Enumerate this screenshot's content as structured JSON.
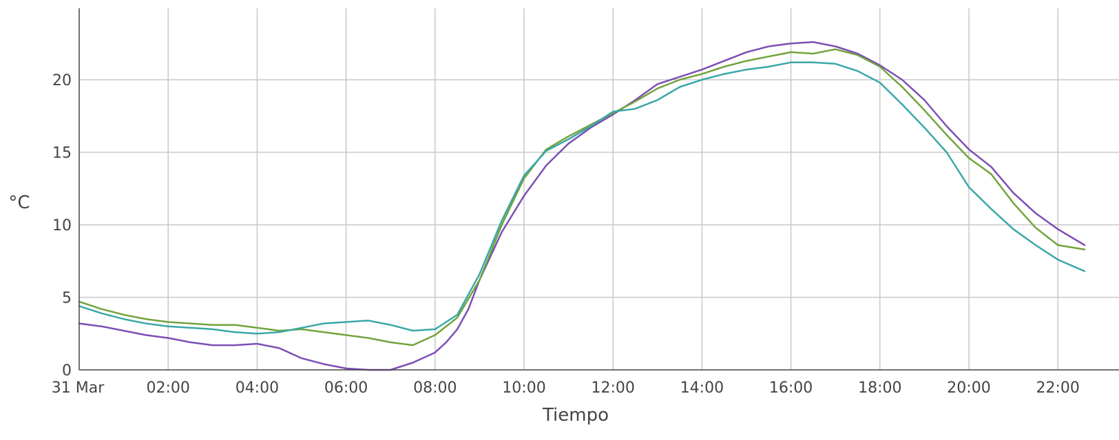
{
  "chart_data": {
    "type": "line",
    "title": "",
    "xlabel": "Tiempo",
    "ylabel": "°C",
    "x_unit": "hours",
    "xlim": [
      0,
      22.6
    ],
    "ylim": [
      0,
      25
    ],
    "grid": true,
    "x_ticks": [
      {
        "value": 0,
        "label": "31 Mar"
      },
      {
        "value": 2,
        "label": "02:00"
      },
      {
        "value": 4,
        "label": "04:00"
      },
      {
        "value": 6,
        "label": "06:00"
      },
      {
        "value": 8,
        "label": "08:00"
      },
      {
        "value": 10,
        "label": "10:00"
      },
      {
        "value": 12,
        "label": "12:00"
      },
      {
        "value": 14,
        "label": "14:00"
      },
      {
        "value": 16,
        "label": "16:00"
      },
      {
        "value": 18,
        "label": "18:00"
      },
      {
        "value": 20,
        "label": "20:00"
      },
      {
        "value": 22,
        "label": "22:00"
      }
    ],
    "y_ticks": [
      {
        "value": 0,
        "label": "0"
      },
      {
        "value": 5,
        "label": "5"
      },
      {
        "value": 10,
        "label": "10"
      },
      {
        "value": 15,
        "label": "15"
      },
      {
        "value": 20,
        "label": "20"
      }
    ],
    "series": [
      {
        "color": "#7b4fb3",
        "points": [
          [
            0,
            3.2
          ],
          [
            0.5,
            3.0
          ],
          [
            1,
            2.7
          ],
          [
            1.5,
            2.4
          ],
          [
            2,
            2.2
          ],
          [
            2.5,
            1.9
          ],
          [
            3,
            1.7
          ],
          [
            3.5,
            1.7
          ],
          [
            4,
            1.8
          ],
          [
            4.5,
            1.5
          ],
          [
            5,
            0.8
          ],
          [
            5.5,
            0.4
          ],
          [
            6,
            0.1
          ],
          [
            6.5,
            0.0
          ],
          [
            7,
            0.0
          ],
          [
            7.5,
            0.5
          ],
          [
            8,
            1.2
          ],
          [
            8.25,
            1.9
          ],
          [
            8.5,
            2.8
          ],
          [
            8.75,
            4.2
          ],
          [
            9,
            6.2
          ],
          [
            9.5,
            9.5
          ],
          [
            10,
            12.0
          ],
          [
            10.5,
            14.1
          ],
          [
            11,
            15.6
          ],
          [
            11.5,
            16.7
          ],
          [
            12,
            17.6
          ],
          [
            12.5,
            18.6
          ],
          [
            13,
            19.7
          ],
          [
            13.5,
            20.2
          ],
          [
            14,
            20.7
          ],
          [
            14.5,
            21.3
          ],
          [
            15,
            21.9
          ],
          [
            15.5,
            22.3
          ],
          [
            16,
            22.5
          ],
          [
            16.5,
            22.6
          ],
          [
            17,
            22.3
          ],
          [
            17.5,
            21.8
          ],
          [
            18,
            21.0
          ],
          [
            18.5,
            20.0
          ],
          [
            19,
            18.6
          ],
          [
            19.5,
            16.8
          ],
          [
            20,
            15.2
          ],
          [
            20.5,
            14.0
          ],
          [
            21,
            12.2
          ],
          [
            21.5,
            10.8
          ],
          [
            22,
            9.7
          ],
          [
            22.6,
            8.6
          ]
        ]
      },
      {
        "color": "#72a33c",
        "points": [
          [
            0,
            4.7
          ],
          [
            0.5,
            4.2
          ],
          [
            1,
            3.8
          ],
          [
            1.5,
            3.5
          ],
          [
            2,
            3.3
          ],
          [
            2.5,
            3.2
          ],
          [
            3,
            3.1
          ],
          [
            3.5,
            3.1
          ],
          [
            4,
            2.9
          ],
          [
            4.5,
            2.7
          ],
          [
            5,
            2.8
          ],
          [
            5.5,
            2.6
          ],
          [
            6,
            2.4
          ],
          [
            6.5,
            2.2
          ],
          [
            7,
            1.9
          ],
          [
            7.5,
            1.7
          ],
          [
            8,
            2.4
          ],
          [
            8.5,
            3.6
          ],
          [
            9,
            6.2
          ],
          [
            9.5,
            10.0
          ],
          [
            10,
            13.2
          ],
          [
            10.5,
            15.2
          ],
          [
            11,
            16.1
          ],
          [
            11.5,
            16.9
          ],
          [
            12,
            17.7
          ],
          [
            12.5,
            18.5
          ],
          [
            13,
            19.4
          ],
          [
            13.5,
            20.0
          ],
          [
            14,
            20.4
          ],
          [
            14.5,
            20.9
          ],
          [
            15,
            21.3
          ],
          [
            15.5,
            21.6
          ],
          [
            16,
            21.9
          ],
          [
            16.5,
            21.8
          ],
          [
            17,
            22.1
          ],
          [
            17.5,
            21.7
          ],
          [
            18,
            20.9
          ],
          [
            18.5,
            19.5
          ],
          [
            19,
            17.9
          ],
          [
            19.5,
            16.2
          ],
          [
            20,
            14.6
          ],
          [
            20.5,
            13.5
          ],
          [
            21,
            11.5
          ],
          [
            21.5,
            9.8
          ],
          [
            22,
            8.6
          ],
          [
            22.6,
            8.3
          ]
        ]
      },
      {
        "color": "#3aa7a7",
        "points": [
          [
            0,
            4.4
          ],
          [
            0.5,
            3.9
          ],
          [
            1,
            3.5
          ],
          [
            1.5,
            3.2
          ],
          [
            2,
            3.0
          ],
          [
            2.5,
            2.9
          ],
          [
            3,
            2.8
          ],
          [
            3.5,
            2.6
          ],
          [
            4,
            2.5
          ],
          [
            4.5,
            2.6
          ],
          [
            5,
            2.9
          ],
          [
            5.5,
            3.2
          ],
          [
            6,
            3.3
          ],
          [
            6.5,
            3.4
          ],
          [
            7,
            3.1
          ],
          [
            7.5,
            2.7
          ],
          [
            8,
            2.8
          ],
          [
            8.5,
            3.8
          ],
          [
            9,
            6.6
          ],
          [
            9.5,
            10.3
          ],
          [
            10,
            13.4
          ],
          [
            10.5,
            15.1
          ],
          [
            11,
            15.9
          ],
          [
            11.5,
            16.8
          ],
          [
            12,
            17.8
          ],
          [
            12.5,
            18.0
          ],
          [
            13,
            18.6
          ],
          [
            13.5,
            19.5
          ],
          [
            14,
            20.0
          ],
          [
            14.5,
            20.4
          ],
          [
            15,
            20.7
          ],
          [
            15.5,
            20.9
          ],
          [
            16,
            21.2
          ],
          [
            16.5,
            21.2
          ],
          [
            17,
            21.1
          ],
          [
            17.5,
            20.6
          ],
          [
            18,
            19.8
          ],
          [
            18.5,
            18.3
          ],
          [
            19,
            16.7
          ],
          [
            19.5,
            15.0
          ],
          [
            20,
            12.6
          ],
          [
            20.5,
            11.1
          ],
          [
            21,
            9.7
          ],
          [
            21.5,
            8.6
          ],
          [
            22,
            7.6
          ],
          [
            22.6,
            6.8
          ]
        ]
      }
    ]
  }
}
